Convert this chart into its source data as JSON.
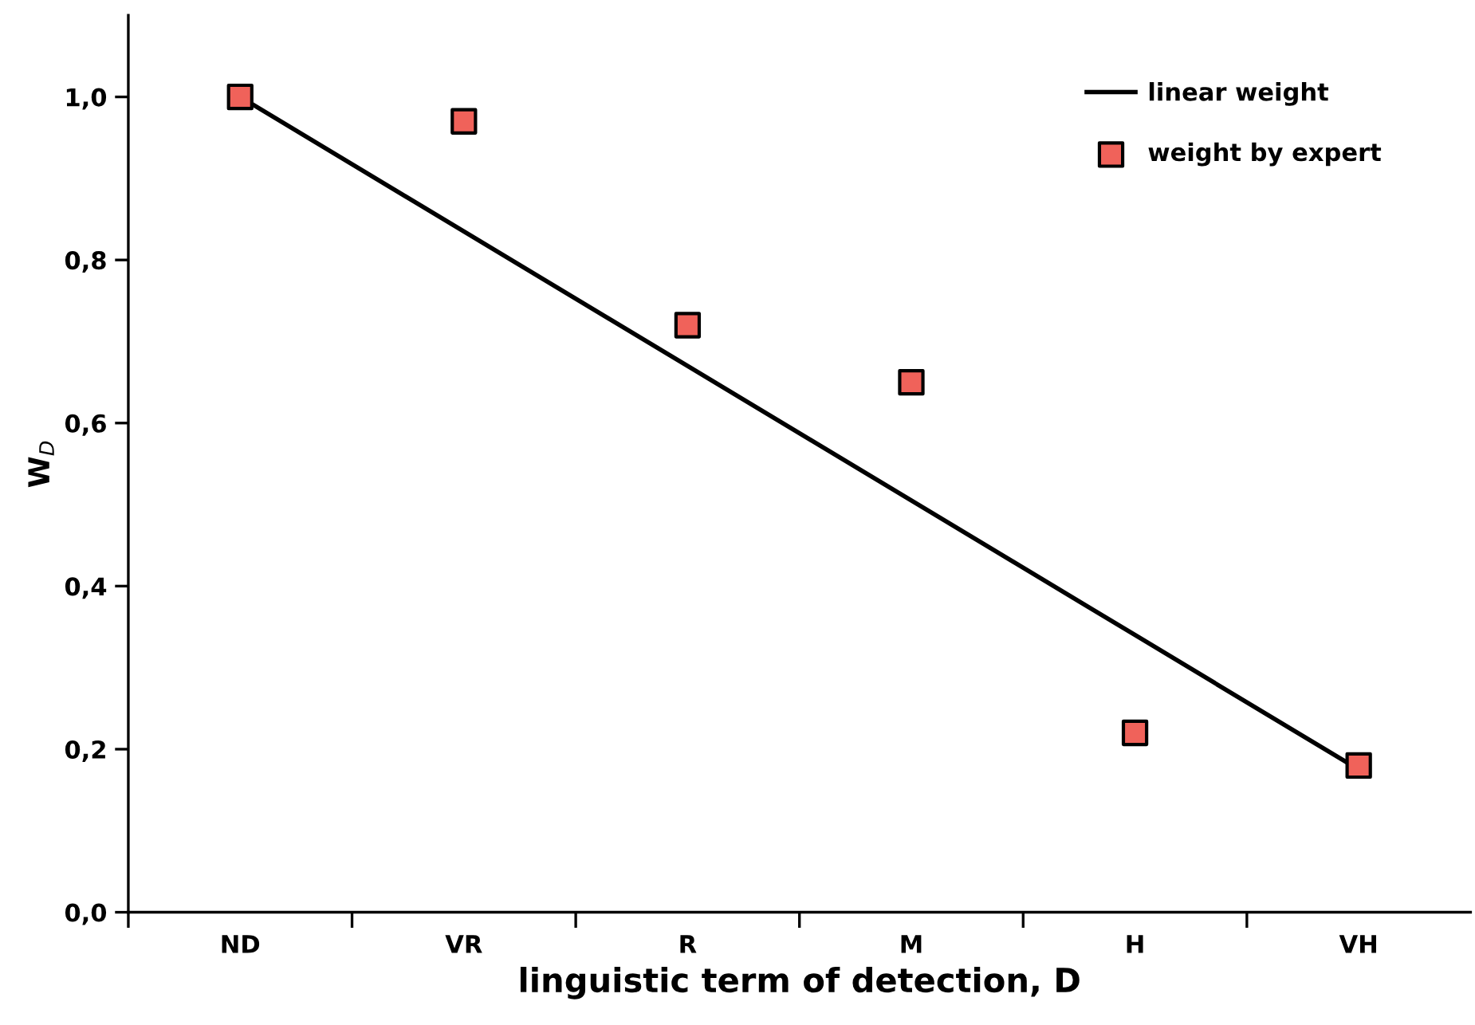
{
  "chart_data": {
    "type": "line",
    "xlabel": "linguistic term of detection, D",
    "ylabel": "W$_{D}$",
    "categories": [
      "ND",
      "VR",
      "R",
      "M",
      "H",
      "VH"
    ],
    "series": [
      {
        "name": "linear weight",
        "color": "#000000",
        "marker": "none",
        "line_style": "solid",
        "values": [
          1.0,
          0.835,
          0.67,
          0.505,
          0.34,
          0.175
        ]
      },
      {
        "name": "weight by expert",
        "type": "scatter",
        "color": "#f0625a",
        "marker": "square",
        "values": [
          1.0,
          0.97,
          0.72,
          0.65,
          0.22,
          0.18
        ]
      }
    ],
    "ylim": [
      0,
      1.1
    ],
    "yticks": [
      {
        "value": 0,
        "label": "0,0"
      },
      {
        "value": 0.2,
        "label": "0,2"
      },
      {
        "value": 0.4,
        "label": "0,4"
      },
      {
        "value": 0.6,
        "label": "0,6"
      },
      {
        "value": 0.8,
        "label": "0,8"
      },
      {
        "value": 1.0,
        "label": "1,0"
      }
    ],
    "grid": false,
    "legend": "top right"
  }
}
